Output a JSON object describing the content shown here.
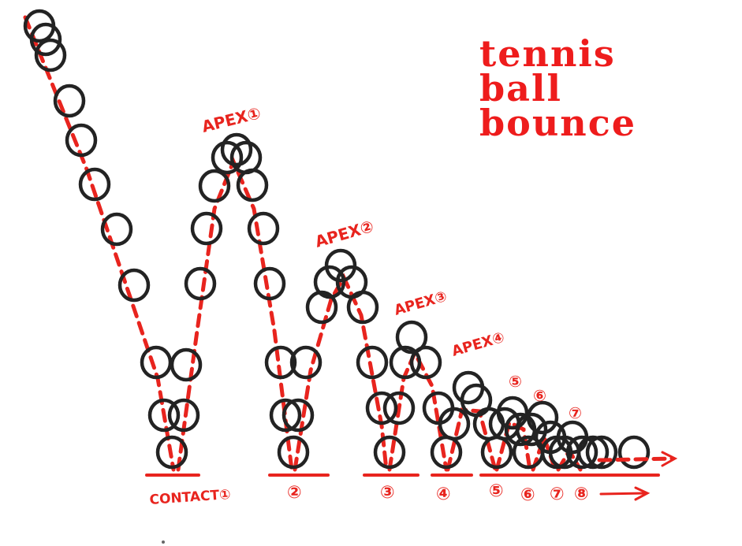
{
  "title_lines": [
    "tennis",
    "ball",
    "bounce"
  ],
  "apex_labels": [
    "APEX①",
    "APEX②",
    "APEX③",
    "APEX④"
  ],
  "contact_labels": [
    "CONTACT①",
    "②",
    "③",
    "④",
    "⑤",
    "⑥",
    "⑦",
    "⑧"
  ],
  "small_numbers": [
    "⑤",
    "⑥",
    "⑦"
  ],
  "colors": {
    "ink": "#232323",
    "accent": "#e8241e",
    "title": "#ee1c1c"
  }
}
